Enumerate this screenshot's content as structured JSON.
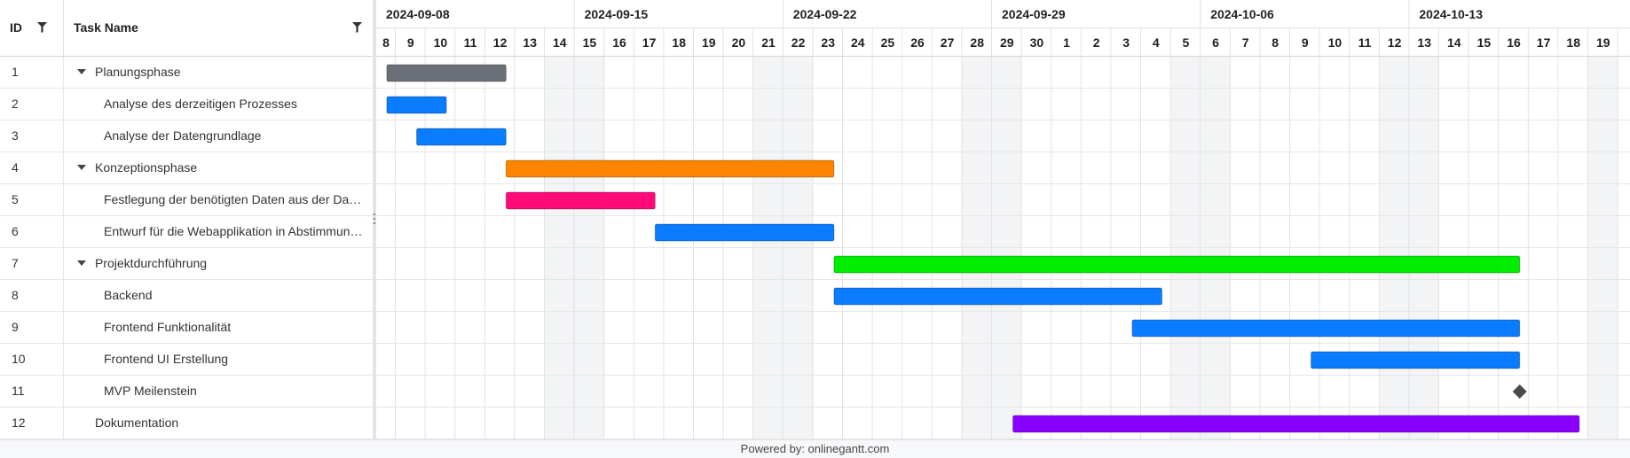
{
  "grid": {
    "columns": {
      "id": "ID",
      "name": "Task Name"
    }
  },
  "timeline": {
    "weeks": [
      "2024-09-08",
      "2024-09-15",
      "2024-09-22",
      "2024-09-29",
      "2024-10-06",
      "2024-10-13"
    ],
    "days": [
      "8",
      "9",
      "10",
      "11",
      "12",
      "13",
      "14",
      "15",
      "16",
      "17",
      "18",
      "19",
      "20",
      "21",
      "22",
      "23",
      "24",
      "25",
      "26",
      "27",
      "28",
      "29",
      "30",
      "1",
      "2",
      "3",
      "4",
      "5",
      "6",
      "7",
      "8",
      "9",
      "10",
      "11",
      "12",
      "13",
      "14",
      "15",
      "16",
      "17",
      "18",
      "19"
    ],
    "weekend_days": [
      6,
      7,
      13,
      14,
      20,
      21,
      27,
      28,
      34,
      35,
      41
    ]
  },
  "tasks": [
    {
      "id": "1",
      "name": "Planungsphase",
      "level": 0,
      "group": true,
      "bar": {
        "start": 0.7,
        "end": 4.7,
        "color": "#6b6f77"
      }
    },
    {
      "id": "2",
      "name": "Analyse des derzeitigen Prozesses",
      "level": 1,
      "group": false,
      "bar": {
        "start": 0.7,
        "end": 2.7,
        "color": "#0a7cff"
      }
    },
    {
      "id": "3",
      "name": "Analyse der Datengrundlage",
      "level": 1,
      "group": false,
      "bar": {
        "start": 1.7,
        "end": 4.7,
        "color": "#0a7cff"
      }
    },
    {
      "id": "4",
      "name": "Konzeptionsphase",
      "level": 0,
      "group": true,
      "bar": {
        "start": 4.7,
        "end": 15.7,
        "color": "#ff8400"
      }
    },
    {
      "id": "5",
      "name": "Festlegung der benötigten Daten aus der Da…",
      "level": 1,
      "group": false,
      "bar": {
        "start": 4.7,
        "end": 9.7,
        "color": "#ff0a78"
      }
    },
    {
      "id": "6",
      "name": "Entwurf für die Webapplikation in Abstimmun…",
      "level": 1,
      "group": false,
      "bar": {
        "start": 9.7,
        "end": 15.7,
        "color": "#0a7cff"
      }
    },
    {
      "id": "7",
      "name": "Projektdurchführung",
      "level": 0,
      "group": true,
      "bar": {
        "start": 15.7,
        "end": 38.7,
        "color": "#00ee00"
      }
    },
    {
      "id": "8",
      "name": "Backend",
      "level": 1,
      "group": false,
      "bar": {
        "start": 15.7,
        "end": 26.7,
        "color": "#0a7cff"
      }
    },
    {
      "id": "9",
      "name": "Frontend Funktionalität",
      "level": 1,
      "group": false,
      "bar": {
        "start": 25.7,
        "end": 38.7,
        "color": "#0a7cff"
      }
    },
    {
      "id": "10",
      "name": "Frontend UI Erstellung",
      "level": 1,
      "group": false,
      "bar": {
        "start": 31.7,
        "end": 38.7,
        "color": "#0a7cff"
      }
    },
    {
      "id": "11",
      "name": "MVP Meilenstein",
      "level": 1,
      "group": false,
      "milestone": {
        "at": 38.7,
        "color": "#4a4a4a"
      }
    },
    {
      "id": "12",
      "name": "Dokumentation",
      "level": 0,
      "group": false,
      "bar": {
        "start": 21.7,
        "end": 40.7,
        "color": "#8a00ff"
      }
    }
  ],
  "footer": {
    "text": "Powered by: onlinegantt.com"
  },
  "icons": {
    "filter": "filter-icon",
    "toggle": "caret-down-icon",
    "milestone": "diamond-icon",
    "resize": "vertical-dots-icon"
  }
}
